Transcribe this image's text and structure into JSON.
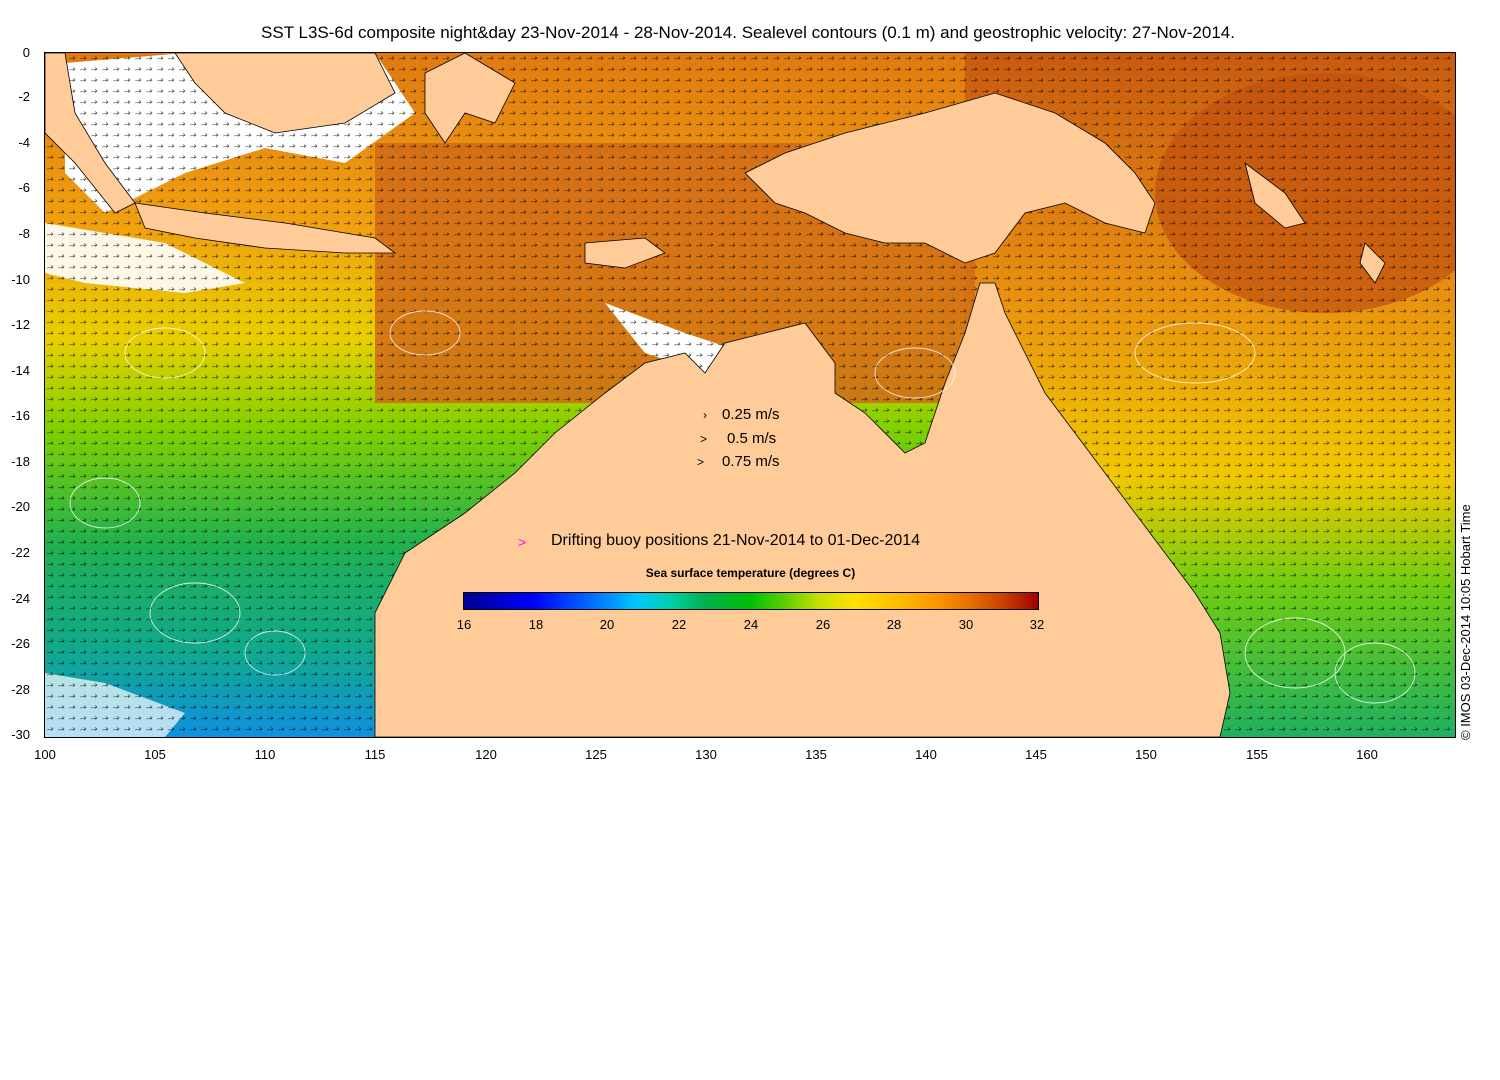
{
  "title": "SST L3S-6d composite night&day 23-Nov-2014 - 28-Nov-2014. Sealevel contours (0.1 m) and geostrophic velocity: 27-Nov-2014.",
  "y_ticks": [
    "0",
    "-2",
    "-4",
    "-6",
    "-8",
    "-10",
    "-12",
    "-14",
    "-16",
    "-18",
    "-20",
    "-22",
    "-24",
    "-26",
    "-28",
    "-30"
  ],
  "x_ticks": [
    "100",
    "105",
    "110",
    "115",
    "120",
    "125",
    "130",
    "135",
    "140",
    "145",
    "150",
    "155",
    "160"
  ],
  "velocity_legend": [
    {
      "symbol": "›",
      "label": "0.25 m/s"
    },
    {
      "symbol": ">",
      "label": "0.5 m/s"
    },
    {
      "symbol": ">",
      "label": "0.75 m/s"
    }
  ],
  "buoy_legend": {
    "symbol": ">",
    "label": "Drifting buoy positions 21-Nov-2014 to 01-Dec-2014",
    "color": "#ff00ff"
  },
  "colorbar": {
    "title": "Sea surface temperature (degrees C)",
    "ticks": [
      "16",
      "18",
      "20",
      "22",
      "24",
      "26",
      "28",
      "30",
      "32"
    ],
    "min": 16,
    "max": 32
  },
  "credit": "© IMOS 03-Dec-2014 10:05 Hobart Time",
  "colors": {
    "land": "#ffcc99",
    "buoy": "#ff00ff",
    "no_data": "#ffffff"
  }
}
